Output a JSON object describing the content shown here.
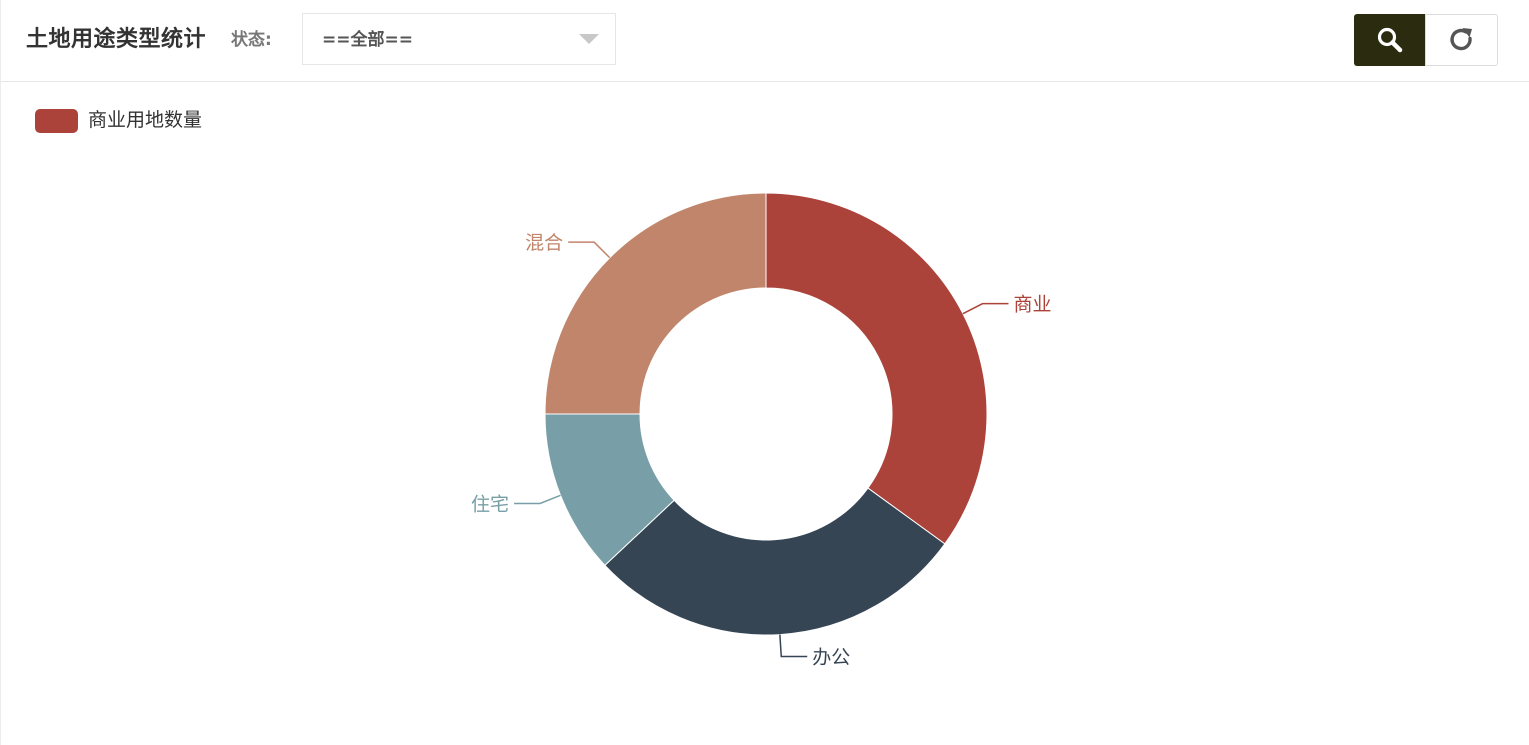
{
  "toolbar": {
    "title": "土地用途类型统计",
    "status_label": "状态:",
    "status_select": {
      "value": "==全部=="
    },
    "search_button_icon": "search-icon",
    "reset_button_icon": "refresh-icon"
  },
  "colors": {
    "search_button_bg": "#2b2b10",
    "legend_swatch": "#ab433a"
  },
  "chart_data": {
    "type": "pie",
    "variant": "donut",
    "legend": {
      "items": [
        "商业用地数量"
      ],
      "placement": "top-left"
    },
    "slices": [
      {
        "label": "商业",
        "value": 35,
        "color": "#ab433a"
      },
      {
        "label": "办公",
        "value": 28,
        "color": "#364554"
      },
      {
        "label": "住宅",
        "value": 12,
        "color": "#789fa7"
      },
      {
        "label": "混合",
        "value": 25,
        "color": "#c1856b"
      }
    ]
  }
}
